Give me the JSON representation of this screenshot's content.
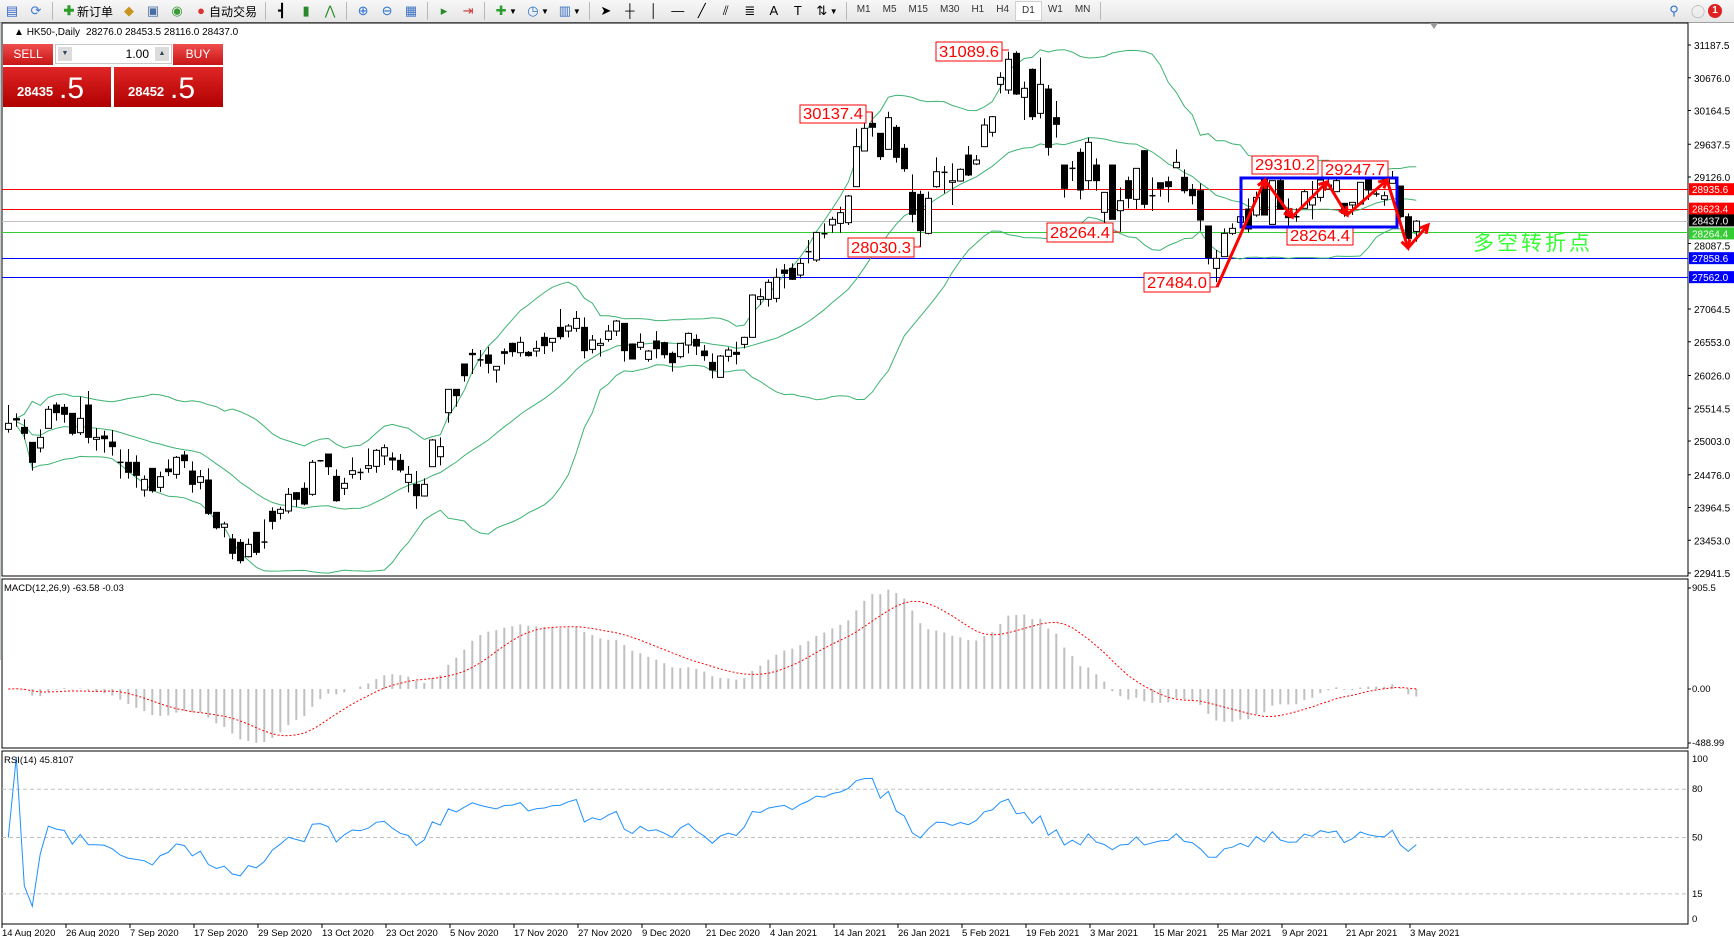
{
  "toolbar": {
    "new_order": "新订单",
    "auto_trading": "自动交易",
    "timeframes": [
      "M1",
      "M5",
      "M15",
      "M30",
      "H1",
      "H4",
      "D1",
      "W1",
      "MN"
    ],
    "active_timeframe": "D1",
    "notification_count": "1"
  },
  "chart": {
    "symbol_period": "HK50-,Daily",
    "ohlc": "28276.0 28453.5 28116.0 28437.0"
  },
  "trade_panel": {
    "sell_label": "SELL",
    "buy_label": "BUY",
    "lot": "1.00",
    "sell_price_main": "28435",
    "sell_price_frac": ".5",
    "buy_price_main": "28452",
    "buy_price_frac": ".5"
  },
  "price_axis": {
    "ticks": [
      "31187.5",
      "30676.0",
      "30164.5",
      "29637.5",
      "29126.0",
      "28087.5",
      "27064.5",
      "26553.0",
      "26026.0",
      "25514.5",
      "25003.0",
      "24476.0",
      "23964.5",
      "23453.0",
      "22941.5"
    ]
  },
  "levels": [
    {
      "value": 28935.6,
      "label": "28935.6",
      "color": "#ff0000"
    },
    {
      "value": 28623.4,
      "label": "28623.4",
      "color": "#ff0000"
    },
    {
      "value": 28437.0,
      "label": "28437.0",
      "color": "#000000",
      "line_color": "#c0c0c0"
    },
    {
      "value": 28264.4,
      "label": "28264.4",
      "color": "#33cc33"
    },
    {
      "value": 27858.6,
      "label": "27858.6",
      "color": "#0000ff"
    },
    {
      "value": 27562.0,
      "label": "27562.0",
      "color": "#0000ff"
    }
  ],
  "annotations": [
    "31089.6",
    "30137.4",
    "28030.3",
    "28264.4",
    "27484.0",
    "29310.2",
    "29247.7",
    "28264.4"
  ],
  "note": "多空转折点",
  "colors": {
    "bands": "#3cb371",
    "annotation": "#ff0000",
    "box": "#0000ff",
    "note": "#33ff33",
    "rsi": "#1e90ff",
    "macd_hist": "#c0c0c0",
    "macd_signal": "#ff0000"
  },
  "macd": {
    "label": "MACD(12,26,9) -63.58 -0.03",
    "max_label": "905.5",
    "zero_label": "0.00",
    "min_label": "-488.99",
    "max": 905.5,
    "min": -488.99
  },
  "rsi": {
    "label": "RSI(14) 45.8107",
    "ticks": [
      "100",
      "80",
      "50",
      "15",
      "0"
    ]
  },
  "date_labels": [
    "14 Aug 2020",
    "26 Aug 2020",
    "7 Sep 2020",
    "17 Sep 2020",
    "29 Sep 2020",
    "13 Oct 2020",
    "23 Oct 2020",
    "5 Nov 2020",
    "17 Nov 2020",
    "27 Nov 2020",
    "9 Dec 2020",
    "21 Dec 2020",
    "4 Jan 2021",
    "14 Jan 2021",
    "26 Jan 2021",
    "5 Feb 2021",
    "19 Feb 2021",
    "3 Mar 2021",
    "15 Mar 2021",
    "25 Mar 2021",
    "9 Apr 2021",
    "21 Apr 2021",
    "3 May 2021"
  ],
  "chart_data": {
    "type": "candlestick",
    "symbol": "HK50-",
    "period": "Daily",
    "ylim": [
      22941.5,
      31187.5
    ],
    "indicators": [
      "Bollinger Bands",
      "MACD(12,26,9)",
      "RSI(14)"
    ],
    "candles_ohlc": [
      [
        25185,
        25565,
        25133,
        25279
      ],
      [
        25352,
        25435,
        25227,
        25331
      ],
      [
        25216,
        25341,
        25029,
        25123
      ],
      [
        24982,
        24982,
        24540,
        24670
      ],
      [
        24894,
        25185,
        24826,
        25060
      ],
      [
        25201,
        25550,
        25201,
        25498
      ],
      [
        25565,
        25607,
        25321,
        25446
      ],
      [
        25529,
        25581,
        25289,
        25420
      ],
      [
        25435,
        25435,
        25091,
        25123
      ],
      [
        25133,
        25695,
        25097,
        25357
      ],
      [
        25565,
        25784,
        24966,
        25060
      ],
      [
        25029,
        25206,
        24852,
        25060
      ],
      [
        25081,
        25164,
        24821,
        25039
      ],
      [
        24987,
        25175,
        24774,
        24915
      ],
      [
        24670,
        24873,
        24415,
        24654
      ],
      [
        24670,
        24878,
        24415,
        24514
      ],
      [
        24670,
        24779,
        24274,
        24467
      ],
      [
        24238,
        24467,
        24134,
        24404
      ],
      [
        24576,
        24576,
        24196,
        24227
      ],
      [
        24279,
        24524,
        24206,
        24446
      ],
      [
        24566,
        24717,
        24456,
        24524
      ],
      [
        24482,
        24769,
        24415,
        24748
      ],
      [
        24784,
        24847,
        24581,
        24696
      ],
      [
        24534,
        24685,
        24196,
        24326
      ],
      [
        24357,
        24550,
        24248,
        24446
      ],
      [
        24394,
        24576,
        23847,
        23873
      ],
      [
        23889,
        23889,
        23623,
        23649
      ],
      [
        23655,
        23743,
        23498,
        23707
      ],
      [
        23473,
        23551,
        23155,
        23249
      ],
      [
        23420,
        23473,
        23093,
        23134
      ],
      [
        23196,
        23478,
        23186,
        23389
      ],
      [
        23577,
        23577,
        23223,
        23264
      ],
      [
        23420,
        23780,
        23322,
        23425
      ],
      [
        23905,
        23967,
        23623,
        23748
      ],
      [
        23873,
        23977,
        23780,
        23936
      ],
      [
        23910,
        24269,
        23873,
        24170
      ],
      [
        24196,
        24207,
        23977,
        24092
      ],
      [
        24264,
        24357,
        23998,
        24019
      ],
      [
        24170,
        24706,
        24149,
        24670
      ],
      [
        24691,
        24700,
        24680,
        24695
      ],
      [
        24800,
        24800,
        24472,
        24602
      ],
      [
        24451,
        24560,
        24055,
        24071
      ],
      [
        24264,
        24430,
        24160,
        24342
      ],
      [
        24482,
        24748,
        24415,
        24540
      ],
      [
        24508,
        24576,
        24394,
        24512
      ],
      [
        24576,
        24888,
        24508,
        24618
      ],
      [
        24607,
        24878,
        24508,
        24857
      ],
      [
        24769,
        24951,
        24628,
        24899
      ],
      [
        24738,
        24826,
        24550,
        24706
      ],
      [
        24701,
        24800,
        24514,
        24550
      ],
      [
        24357,
        24613,
        24201,
        24482
      ],
      [
        24326,
        24534,
        23946,
        24149
      ],
      [
        24144,
        24420,
        24134,
        24326
      ],
      [
        24602,
        25034,
        24602,
        25019
      ],
      [
        24758,
        25060,
        24623,
        24915
      ],
      [
        25446,
        25810,
        25289,
        25810
      ],
      [
        25810,
        25810,
        25539,
        25711
      ],
      [
        26206,
        26206,
        25930,
        26023
      ],
      [
        26372,
        26440,
        26049,
        26351
      ],
      [
        26257,
        26424,
        26164,
        26270
      ],
      [
        26346,
        26476,
        26060,
        26216
      ],
      [
        26112,
        26169,
        25914,
        26169
      ],
      [
        26398,
        26450,
        26200,
        26372
      ],
      [
        26528,
        26539,
        26320,
        26398
      ],
      [
        26382,
        26632,
        26320,
        26544
      ],
      [
        26388,
        26408,
        26320,
        26336
      ],
      [
        26408,
        26570,
        26320,
        26450
      ],
      [
        26622,
        26695,
        26362,
        26492
      ],
      [
        26544,
        26606,
        26398,
        26606
      ],
      [
        26778,
        27064,
        26590,
        26632
      ],
      [
        26720,
        26830,
        26622,
        26799
      ],
      [
        26762,
        27033,
        26710,
        26918
      ],
      [
        26778,
        26934,
        26294,
        26414
      ],
      [
        26434,
        26658,
        26372,
        26580
      ],
      [
        26497,
        26606,
        26320,
        26528
      ],
      [
        26590,
        26814,
        26554,
        26720
      ],
      [
        26720,
        26892,
        26643,
        26877
      ],
      [
        26840,
        26840,
        26242,
        26414
      ],
      [
        26518,
        26528,
        26279,
        26284
      ],
      [
        26466,
        26684,
        26424,
        26544
      ],
      [
        26278,
        26424,
        26242,
        26408
      ],
      [
        26565,
        26720,
        26294,
        26445
      ],
      [
        26539,
        26554,
        26294,
        26351
      ],
      [
        26372,
        26398,
        26086,
        26226
      ],
      [
        26320,
        26528,
        26294,
        26528
      ],
      [
        26502,
        26700,
        26372,
        26684
      ],
      [
        26590,
        26669,
        26346,
        26486
      ],
      [
        26408,
        26502,
        26257,
        26336
      ],
      [
        26231,
        26372,
        25982,
        26112
      ],
      [
        25997,
        26346,
        25997,
        26330
      ],
      [
        26325,
        26466,
        26242,
        26424
      ],
      [
        26388,
        26554,
        26200,
        26356
      ],
      [
        26512,
        26632,
        26450,
        26622
      ],
      [
        26622,
        27293,
        26622,
        27283
      ],
      [
        27215,
        27387,
        27127,
        27257
      ],
      [
        27215,
        27528,
        27101,
        27481
      ],
      [
        27231,
        27699,
        27168,
        27559
      ],
      [
        27673,
        27767,
        27387,
        27621
      ],
      [
        27699,
        27777,
        27517,
        27528
      ],
      [
        27595,
        27856,
        27543,
        27777
      ],
      [
        27950,
        28142,
        27777,
        27960
      ],
      [
        27830,
        28268,
        27800,
        28261
      ],
      [
        28230,
        28402,
        28168,
        28240
      ],
      [
        28376,
        28506,
        28256,
        28465
      ],
      [
        28402,
        28662,
        28256,
        28569
      ],
      [
        28413,
        28845,
        28376,
        28829
      ],
      [
        28975,
        29886,
        28975,
        29600
      ],
      [
        29532,
        30016,
        29532,
        29886
      ],
      [
        29964,
        30137,
        29756,
        29902
      ],
      [
        29808,
        29808,
        29391,
        29444
      ],
      [
        29558,
        30146,
        29558,
        30053
      ],
      [
        29902,
        29938,
        29350,
        29433
      ],
      [
        29574,
        29641,
        29209,
        29256
      ],
      [
        28886,
        29168,
        28418,
        28543
      ],
      [
        28855,
        28912,
        28030,
        28288
      ],
      [
        28246,
        28897,
        28230,
        28793
      ],
      [
        28975,
        29433,
        28959,
        29209
      ],
      [
        29193,
        29298,
        28870,
        29199
      ],
      [
        29043,
        29339,
        28689,
        29068
      ],
      [
        29063,
        29261,
        29053,
        29246
      ],
      [
        29469,
        29610,
        29142,
        29157
      ],
      [
        29329,
        29469,
        29313,
        29391
      ],
      [
        29600,
        30042,
        29600,
        29938
      ],
      [
        29824,
        30079,
        29756,
        30068
      ],
      [
        30573,
        30761,
        30433,
        30682
      ],
      [
        30485,
        31083,
        30422,
        30964
      ],
      [
        31057,
        31089,
        30407,
        30422
      ],
      [
        30370,
        30615,
        30016,
        30511
      ],
      [
        30807,
        30823,
        30016,
        30068
      ],
      [
        30120,
        30990,
        30042,
        30573
      ],
      [
        30500,
        30563,
        29459,
        29589
      ],
      [
        30053,
        30313,
        29740,
        29948
      ],
      [
        29313,
        29313,
        28803,
        28949
      ],
      [
        29261,
        29376,
        29063,
        29261
      ],
      [
        29511,
        29574,
        28777,
        28923
      ],
      [
        29069,
        29740,
        28923,
        29667
      ],
      [
        29313,
        29417,
        28912,
        29069
      ],
      [
        28574,
        28886,
        28413,
        28886
      ],
      [
        29313,
        29313,
        28465,
        28465
      ],
      [
        28600,
        28964,
        28272,
        28756
      ],
      [
        29069,
        29131,
        28636,
        28793
      ],
      [
        28777,
        29261,
        28626,
        29261
      ],
      [
        29537,
        29548,
        28636,
        28699
      ],
      [
        28834,
        29121,
        28595,
        28834
      ],
      [
        29037,
        29037,
        28819,
        28949
      ],
      [
        29053,
        29131,
        28730,
        28975
      ],
      [
        29271,
        29558,
        29271,
        29355
      ],
      [
        29121,
        29246,
        28871,
        28912
      ],
      [
        28933,
        29017,
        28699,
        28834
      ],
      [
        28912,
        29027,
        28288,
        28454
      ],
      [
        28361,
        28361,
        27762,
        27866
      ],
      [
        27699,
        27986,
        27484,
        27856
      ],
      [
        27882,
        28324,
        27882,
        28246
      ],
      [
        28246,
        28402,
        28220,
        28324
      ],
      [
        28418,
        28558,
        28334,
        28506
      ],
      [
        28626,
        28793,
        28262,
        28314
      ],
      [
        28532,
        28897,
        28506,
        28808
      ],
      [
        29105,
        29105,
        28532,
        28532
      ],
      [
        28386,
        29069,
        28386,
        29069
      ],
      [
        29069,
        29105,
        28626,
        28626
      ],
      [
        28584,
        28793,
        28220,
        28491
      ],
      [
        28506,
        28637,
        28428,
        28506
      ],
      [
        28637,
        28938,
        28637,
        28897
      ],
      [
        28689,
        29063,
        28465,
        28803
      ],
      [
        28808,
        29105,
        28741,
        29079
      ],
      [
        28938,
        29157,
        28938,
        29001
      ],
      [
        28897,
        29209,
        28897,
        29069
      ],
      [
        28715,
        28715,
        28506,
        28558
      ],
      [
        28689,
        28730,
        28532,
        28730
      ],
      [
        28704,
        29043,
        28704,
        29043
      ],
      [
        29095,
        29131,
        28767,
        28923
      ],
      [
        28860,
        28900,
        28820,
        28860
      ],
      [
        28777,
        28897,
        28678,
        28834
      ],
      [
        29027,
        29220,
        29027,
        29105
      ],
      [
        28985,
        28985,
        28480,
        28506
      ],
      [
        28506,
        28558,
        28142,
        28168
      ],
      [
        28276,
        28453.5,
        28116,
        28437
      ]
    ]
  }
}
